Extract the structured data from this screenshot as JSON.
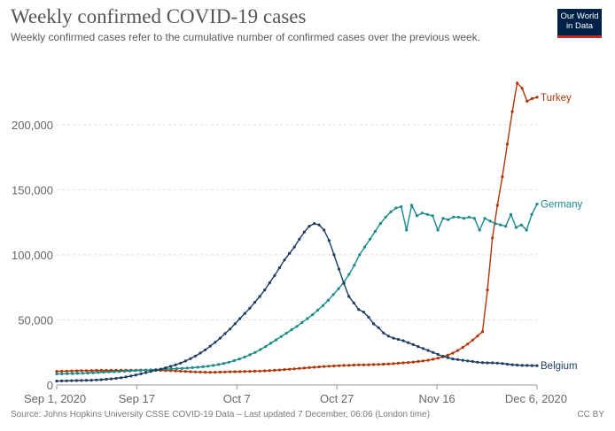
{
  "header": {
    "title": "Weekly confirmed COVID-19 cases",
    "subtitle": "Weekly confirmed cases refer to the cumulative number of confirmed cases over the previous week.",
    "logo_line1": "Our World",
    "logo_line2": "in Data"
  },
  "footer": {
    "source": "Source: Johns Hopkins University CSSE COVID-19 Data – Last updated 7 December, 06:06 (London time)",
    "license": "CC BY"
  },
  "colors": {
    "turkey": "#b13507",
    "germany": "#1a8a8a",
    "belgium": "#1d3d63",
    "grid": "#dddddd",
    "axis_text": "#666666"
  },
  "chart_data": {
    "type": "line",
    "x_start": "Sep 1, 2020",
    "x_end": "Dec 6, 2020",
    "ylim": [
      0,
      240000
    ],
    "yticks": [
      0,
      50000,
      100000,
      150000,
      200000
    ],
    "ytick_labels": [
      "0",
      "50,000",
      "100,000",
      "150,000",
      "200,000"
    ],
    "xticks": [
      {
        "day": 0,
        "label": "Sep 1, 2020"
      },
      {
        "day": 16,
        "label": "Sep 17"
      },
      {
        "day": 36,
        "label": "Oct 7"
      },
      {
        "day": 56,
        "label": "Oct 27"
      },
      {
        "day": 76,
        "label": "Nov 16"
      },
      {
        "day": 96,
        "label": "Dec 6, 2020"
      }
    ],
    "grid": "horizontal dashed",
    "legend": "inline labels at line ends",
    "series": [
      {
        "name": "Turkey",
        "values": [
          10500,
          10600,
          10700,
          10800,
          10900,
          11000,
          11000,
          11100,
          11200,
          11200,
          11200,
          11300,
          11300,
          11300,
          11300,
          11300,
          11300,
          11400,
          11400,
          11400,
          11300,
          11200,
          11100,
          11000,
          10800,
          10600,
          10400,
          10200,
          10000,
          9900,
          9800,
          9700,
          9800,
          9900,
          10000,
          10100,
          10200,
          10300,
          10400,
          10500,
          10600,
          10700,
          10900,
          11100,
          11300,
          11500,
          11800,
          12100,
          12400,
          12700,
          13000,
          13300,
          13600,
          13900,
          14200,
          14400,
          14600,
          14800,
          15000,
          15100,
          15300,
          15400,
          15500,
          15600,
          15700,
          15800,
          16000,
          16200,
          16400,
          16700,
          17000,
          17300,
          17600,
          18000,
          18500,
          19000,
          19800,
          20600,
          21700,
          23000,
          24500,
          26500,
          28800,
          31500,
          34500,
          37600,
          40900,
          73000,
          113000,
          138000,
          160000,
          185000,
          210000,
          232000,
          228000,
          218000,
          220000,
          221000
        ]
      },
      {
        "name": "Germany",
        "values": [
          8500,
          8600,
          8700,
          8800,
          8900,
          9000,
          9200,
          9400,
          9600,
          9800,
          10000,
          10200,
          10400,
          10600,
          10800,
          11000,
          11200,
          11400,
          11600,
          11800,
          12000,
          12200,
          12400,
          12600,
          12800,
          13000,
          13300,
          13600,
          14000,
          14400,
          15000,
          15700,
          16500,
          17500,
          18700,
          20000,
          21500,
          23200,
          25000,
          27200,
          29500,
          32000,
          34600,
          37200,
          39800,
          42500,
          45000,
          48000,
          51000,
          54000,
          57500,
          61000,
          65000,
          69500,
          74000,
          79000,
          85000,
          92000,
          100000,
          106000,
          112000,
          118000,
          124000,
          129000,
          133000,
          136000,
          137000,
          119000,
          138000,
          130000,
          132000,
          131000,
          130000,
          119000,
          128000,
          127000,
          129000,
          129000,
          128000,
          129000,
          128000,
          119000,
          128000,
          126000,
          124000,
          123000,
          122000,
          131000,
          121000,
          123000,
          119000,
          131000,
          139000
        ]
      },
      {
        "name": "Belgium",
        "values": [
          3000,
          3100,
          3200,
          3300,
          3400,
          3500,
          3600,
          3700,
          3900,
          4100,
          4400,
          4700,
          5100,
          5600,
          6200,
          6900,
          7700,
          8600,
          9500,
          10400,
          11300,
          12200,
          13200,
          14300,
          15500,
          16800,
          18400,
          20200,
          22200,
          24500,
          27000,
          29800,
          32800,
          36000,
          39500,
          43000,
          47000,
          51000,
          55000,
          59000,
          63500,
          68000,
          73000,
          78500,
          84000,
          90000,
          96000,
          101000,
          106000,
          112000,
          117500,
          122000,
          124000,
          123000,
          119000,
          111000,
          100000,
          89000,
          78000,
          68000,
          63000,
          58000,
          56000,
          52000,
          47000,
          44000,
          40000,
          37500,
          36000,
          35000,
          34000,
          32500,
          31000,
          29500,
          28000,
          26500,
          25000,
          23500,
          22000,
          21000,
          20000,
          19500,
          19000,
          18500,
          18000,
          17500,
          17200,
          17000,
          17000,
          16800,
          16500,
          16000,
          15600,
          15300,
          15000,
          15000,
          14900,
          14800
        ]
      }
    ]
  }
}
